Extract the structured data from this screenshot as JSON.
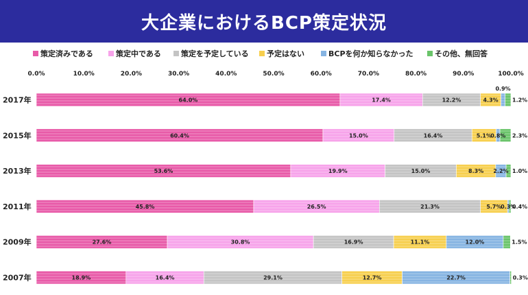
{
  "title": "大企業におけるBCP策定状況",
  "chart_data": {
    "type": "bar",
    "orientation": "horizontal",
    "stacked": true,
    "title": "大企業におけるBCP策定状況",
    "categories": [
      "2017年",
      "2015年",
      "2013年",
      "2011年",
      "2009年",
      "2007年"
    ],
    "xlim": [
      0,
      100
    ],
    "x_ticks": [
      "0.0%",
      "10.0%",
      "20.0%",
      "30.0%",
      "40.0%",
      "50.0%",
      "60.0%",
      "70.0%",
      "80.0%",
      "90.0%",
      "100.0%"
    ],
    "legend_position": "top",
    "grid": false,
    "series": [
      {
        "name": "策定済みである",
        "color": "#e85aa8",
        "values": [
          64.0,
          60.4,
          53.6,
          45.8,
          27.6,
          18.9
        ]
      },
      {
        "name": "策定中である",
        "color": "#f7a3ea",
        "values": [
          17.4,
          15.0,
          19.9,
          26.5,
          30.8,
          16.4
        ]
      },
      {
        "name": "策定を予定している",
        "color": "#c4c4c4",
        "values": [
          12.2,
          16.4,
          15.0,
          21.3,
          16.9,
          29.1
        ]
      },
      {
        "name": "予定はない",
        "color": "#f7cf4e",
        "values": [
          4.3,
          5.1,
          8.3,
          5.7,
          11.1,
          12.7
        ]
      },
      {
        "name": "BCPを何か知らなかった",
        "color": "#86b4e2",
        "values": [
          0.9,
          0.8,
          2.2,
          0.3,
          12.0,
          22.7
        ]
      },
      {
        "name": "その他、無回答",
        "color": "#6ac46a",
        "values": [
          1.2,
          2.3,
          1.0,
          0.4,
          1.5,
          0.3
        ]
      }
    ],
    "value_labels": [
      [
        "64.0%",
        "17.4%",
        "12.2%",
        "4.3%",
        "0.9%",
        "1.2%"
      ],
      [
        "60.4%",
        "15.0%",
        "16.4%",
        "5.1%",
        "0.8%",
        "2.3%"
      ],
      [
        "53.6%",
        "19.9%",
        "15.0%",
        "8.3%",
        "2.2%",
        "1.0%"
      ],
      [
        "45.8%",
        "26.5%",
        "21.3%",
        "5.7%",
        "0.3%",
        "0.4%"
      ],
      [
        "27.6%",
        "30.8%",
        "16.9%",
        "11.1%",
        "12.0%",
        "1.5%"
      ],
      [
        "18.9%",
        "16.4%",
        "29.1%",
        "12.7%",
        "22.7%",
        "0.3%"
      ]
    ]
  }
}
